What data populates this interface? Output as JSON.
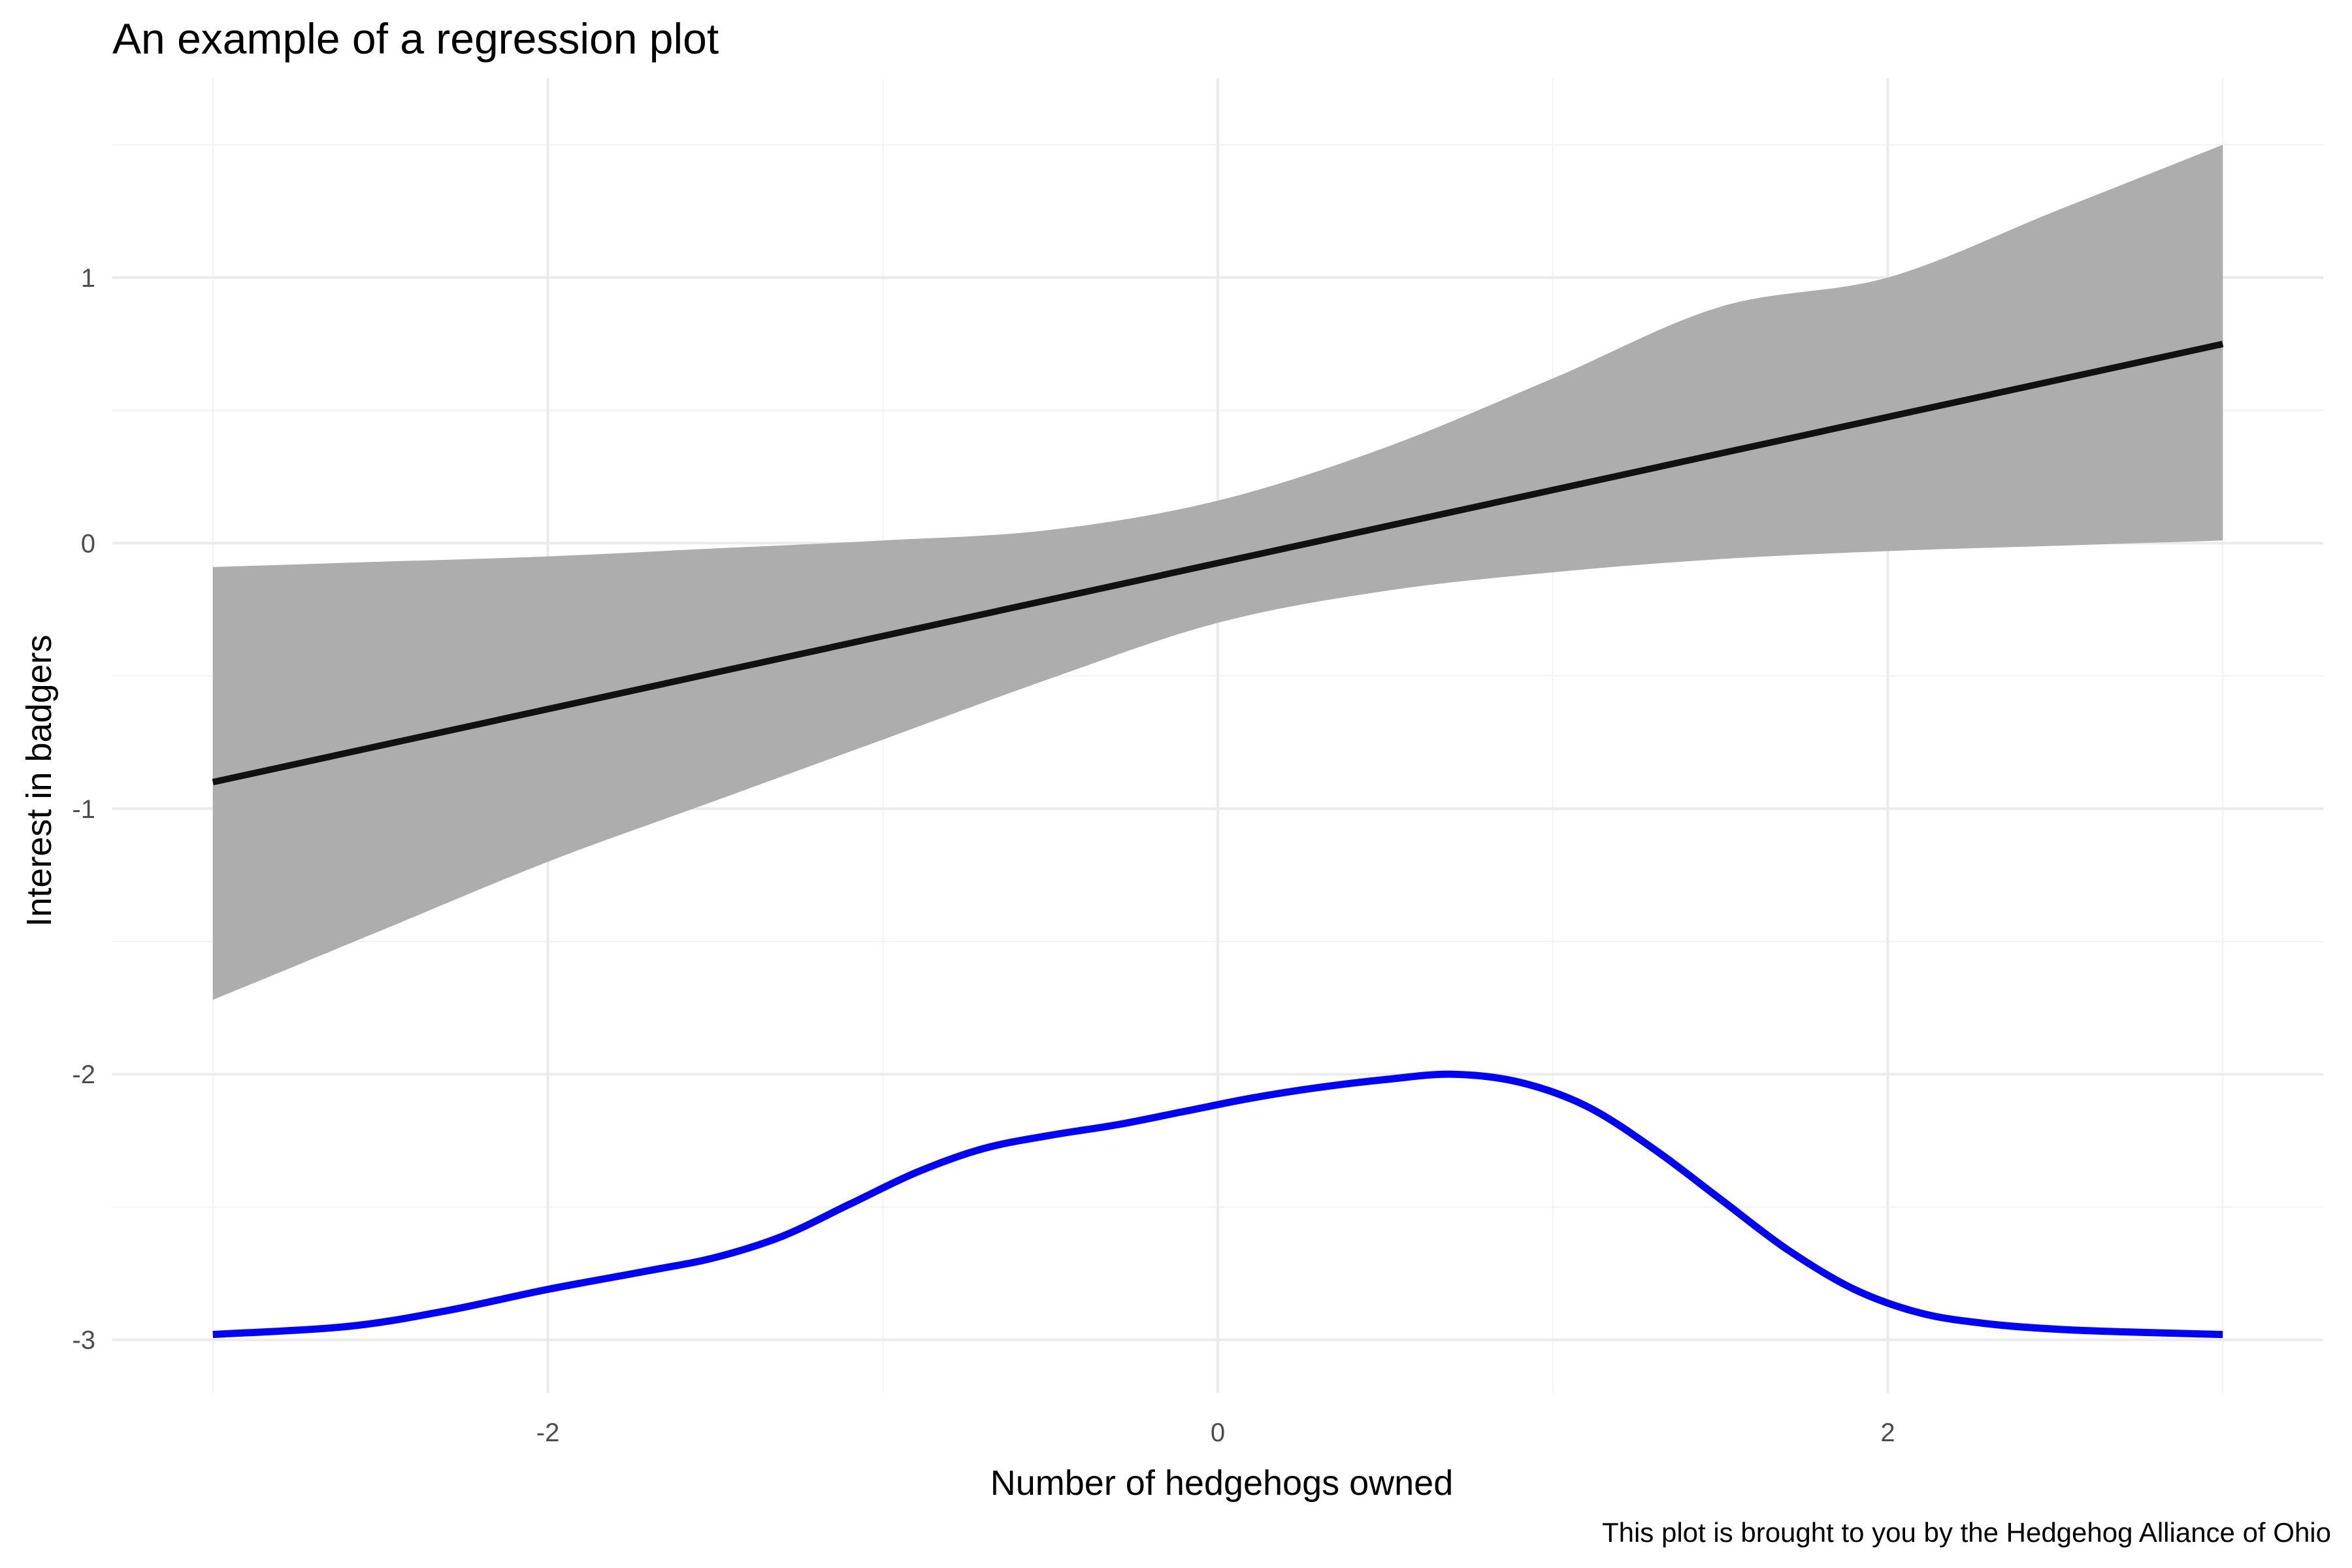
{
  "chart_data": {
    "type": "line",
    "title": "An example of a regression plot",
    "xlabel": "Number of hedgehogs owned",
    "ylabel": "Interest in badgers",
    "caption": "This plot is brought to you by the Hedgehog Alliance of Ohio",
    "xlim": [
      -3.3,
      3.3
    ],
    "ylim": [
      -3.2,
      1.75
    ],
    "x_ticks": [
      -2,
      0,
      2
    ],
    "x_tick_labels": [
      "-2",
      "0",
      "2"
    ],
    "x_minor_ticks": [
      -3,
      -1,
      1,
      3
    ],
    "y_ticks": [
      -3,
      -2,
      -1,
      0,
      1
    ],
    "y_tick_labels": [
      "-3",
      "-2",
      "-1",
      "0",
      "1"
    ],
    "y_minor_ticks": [
      -2.5,
      -1.5,
      -0.5,
      0.5,
      1.5
    ],
    "grid": true,
    "colors": {
      "ribbon": "#adadad",
      "fit_line": "#111111",
      "density_line": "#0000ff"
    },
    "series": [
      {
        "role": "confidence-band",
        "x": [
          -3.0,
          -2.5,
          -2.0,
          -1.5,
          -1.0,
          -0.5,
          0.0,
          0.5,
          1.0,
          1.5,
          2.0,
          2.5,
          3.0
        ],
        "lower": [
          -1.72,
          -1.46,
          -1.2,
          -0.97,
          -0.74,
          -0.51,
          -0.3,
          -0.18,
          -0.11,
          -0.06,
          -0.03,
          -0.01,
          0.01
        ],
        "upper": [
          -0.09,
          -0.07,
          -0.05,
          -0.02,
          0.01,
          0.05,
          0.16,
          0.36,
          0.62,
          0.89,
          1.0,
          1.25,
          1.5
        ]
      },
      {
        "role": "fit-line",
        "x": [
          -3.0,
          3.0
        ],
        "y": [
          -0.9,
          0.75
        ]
      },
      {
        "role": "density-curve",
        "x": [
          -3.0,
          -2.6,
          -2.3,
          -2.0,
          -1.7,
          -1.5,
          -1.3,
          -1.1,
          -0.9,
          -0.7,
          -0.5,
          -0.3,
          -0.1,
          0.1,
          0.3,
          0.5,
          0.7,
          0.9,
          1.1,
          1.3,
          1.5,
          1.7,
          1.9,
          2.1,
          2.3,
          2.5,
          2.7,
          3.0
        ],
        "y": [
          -2.98,
          -2.95,
          -2.89,
          -2.81,
          -2.74,
          -2.69,
          -2.61,
          -2.49,
          -2.37,
          -2.28,
          -2.23,
          -2.19,
          -2.14,
          -2.09,
          -2.05,
          -2.02,
          -2.0,
          -2.03,
          -2.12,
          -2.28,
          -2.47,
          -2.66,
          -2.81,
          -2.9,
          -2.94,
          -2.96,
          -2.97,
          -2.98
        ]
      }
    ]
  }
}
